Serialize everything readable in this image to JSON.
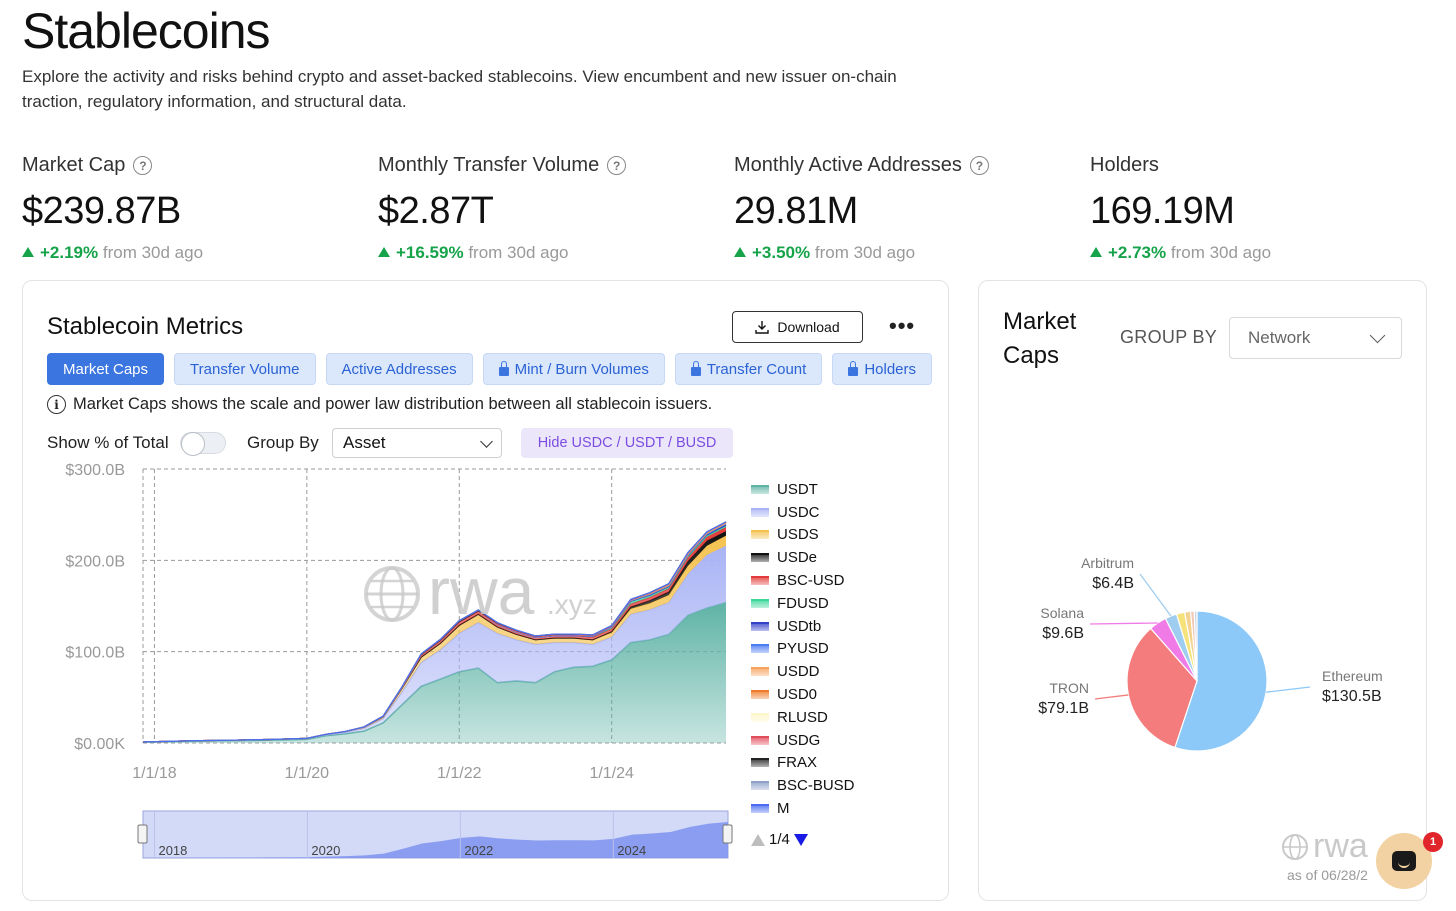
{
  "page": {
    "title": "Stablecoins",
    "description": "Explore the activity and risks behind crypto and asset-backed stablecoins. View encumbent and new issuer on-chain traction, regulatory information, and structural data."
  },
  "stats": [
    {
      "label": "Market Cap",
      "help": true,
      "value": "$239.87B",
      "change": "+2.19%",
      "suffix": "from 30d ago"
    },
    {
      "label": "Monthly Transfer Volume",
      "help": true,
      "value": "$2.87T",
      "change": "+16.59%",
      "suffix": "from 30d ago"
    },
    {
      "label": "Monthly Active Addresses",
      "help": true,
      "value": "29.81M",
      "change": "+3.50%",
      "suffix": "from 30d ago"
    },
    {
      "label": "Holders",
      "help": false,
      "value": "169.19M",
      "change": "+2.73%",
      "suffix": "from 30d ago"
    }
  ],
  "metrics_card": {
    "title": "Stablecoin Metrics",
    "download_label": "Download",
    "more_label": "•••",
    "tabs": [
      {
        "label": "Market Caps",
        "active": true,
        "locked": false
      },
      {
        "label": "Transfer Volume",
        "active": false,
        "locked": false
      },
      {
        "label": "Active Addresses",
        "active": false,
        "locked": false
      },
      {
        "label": "Mint / Burn Volumes",
        "active": false,
        "locked": true
      },
      {
        "label": "Transfer Count",
        "active": false,
        "locked": true
      },
      {
        "label": "Holders",
        "active": false,
        "locked": true
      }
    ],
    "info_text": "Market Caps shows the scale and power law distribution between all stablecoin issuers.",
    "show_pct_label": "Show % of Total",
    "show_pct_on": false,
    "group_by_label": "Group By",
    "group_by_value": "Asset",
    "hide_button": "Hide USDC / USDT / BUSD",
    "watermark": "rwa",
    "watermark_suffix": ".xyz",
    "legend_pager": "1/4",
    "navigator_ticks": [
      "2018",
      "2020",
      "2022",
      "2024"
    ]
  },
  "chart_data": {
    "type": "area",
    "stacked": true,
    "ylim": [
      0,
      300
    ],
    "y_ticks": [
      {
        "value": 0,
        "label": "$0.00K"
      },
      {
        "value": 100,
        "label": "$100.0B"
      },
      {
        "value": 200,
        "label": "$200.0B"
      },
      {
        "value": 300,
        "label": "$300.0B"
      }
    ],
    "x_ticks": [
      {
        "value": 2018.0,
        "label": "1/1/18"
      },
      {
        "value": 2020.0,
        "label": "1/1/20"
      },
      {
        "value": 2022.0,
        "label": "1/1/22"
      },
      {
        "value": 2024.0,
        "label": "1/1/24"
      }
    ],
    "xlim": [
      2017.85,
      2025.5
    ],
    "x": [
      2017.85,
      2018.5,
      2019.0,
      2019.5,
      2020.0,
      2020.25,
      2020.5,
      2020.75,
      2021.0,
      2021.25,
      2021.5,
      2021.75,
      2022.0,
      2022.25,
      2022.5,
      2022.75,
      2023.0,
      2023.25,
      2023.5,
      2023.75,
      2024.0,
      2024.25,
      2024.5,
      2024.75,
      2025.0,
      2025.25,
      2025.5
    ],
    "series": [
      {
        "name": "USDT",
        "color": "#5fb3a6",
        "values": [
          1,
          2,
          2.5,
          3,
          4,
          8,
          10,
          13,
          22,
          42,
          62,
          70,
          78,
          82,
          66,
          68,
          66,
          78,
          83,
          84,
          91,
          110,
          113,
          119,
          140,
          148,
          154
        ]
      },
      {
        "name": "USDC",
        "color": "#aab4f5",
        "values": [
          0,
          0.3,
          0.4,
          0.6,
          0.8,
          1,
          1.5,
          2.8,
          4.5,
          14,
          26,
          32,
          42,
          50,
          54,
          45,
          42,
          32,
          27,
          24,
          25,
          31,
          33,
          35,
          45,
          58,
          62
        ]
      },
      {
        "name": "USDS",
        "color": "#f4c24f",
        "values": [
          0.1,
          0.2,
          0.2,
          0.2,
          0.3,
          0.5,
          1,
          1.5,
          2,
          4,
          6,
          7,
          9,
          9,
          7,
          6,
          5,
          5,
          5,
          5,
          5,
          6,
          7,
          8,
          9,
          10,
          11
        ]
      },
      {
        "name": "USDe",
        "color": "#111111",
        "values": [
          0,
          0,
          0,
          0,
          0,
          0,
          0,
          0,
          0,
          0,
          0,
          0,
          0,
          0,
          0,
          0,
          0,
          0,
          0,
          0,
          1,
          2,
          3,
          3.5,
          5,
          5.5,
          5
        ]
      },
      {
        "name": "BSC-USD",
        "color": "#e33b3b",
        "values": [
          0,
          0,
          0,
          0,
          0,
          0,
          0,
          0.3,
          0.6,
          1,
          2,
          2.5,
          3,
          3,
          2.8,
          2.6,
          2.5,
          2.6,
          2.7,
          2.8,
          3,
          3.2,
          3.4,
          3.6,
          4,
          4.2,
          4.4
        ]
      },
      {
        "name": "FDUSD",
        "color": "#3ad69a",
        "values": [
          0,
          0,
          0,
          0,
          0,
          0,
          0,
          0,
          0,
          0,
          0,
          0,
          0,
          0,
          0,
          0,
          0,
          0,
          0,
          1,
          2,
          3,
          2.5,
          2.4,
          1.8,
          1.5,
          1.3
        ]
      },
      {
        "name": "USDtb",
        "color": "#3341c9",
        "values": [
          0,
          0,
          0,
          0,
          0,
          0,
          0,
          0,
          0,
          0,
          0,
          0,
          0,
          0,
          0,
          0,
          0,
          0,
          0,
          0,
          0,
          0,
          0,
          0,
          0.5,
          1.2,
          1.4
        ]
      },
      {
        "name": "PYUSD",
        "color": "#4d7cf0",
        "values": [
          0,
          0,
          0,
          0,
          0,
          0,
          0,
          0,
          0,
          0,
          0,
          0,
          0,
          0,
          0,
          0,
          0,
          0,
          0.1,
          0.2,
          0.3,
          0.4,
          0.7,
          0.6,
          0.5,
          0.6,
          0.9
        ]
      },
      {
        "name": "USDD",
        "color": "#f7a25c",
        "values": [
          0,
          0,
          0,
          0,
          0,
          0,
          0,
          0,
          0,
          0,
          0,
          0,
          0,
          0,
          0.6,
          0.7,
          0.7,
          0.7,
          0.7,
          0.7,
          0.7,
          0.7,
          0.7,
          0.7,
          0.7,
          0.7,
          0.7
        ]
      },
      {
        "name": "USD0",
        "color": "#ef7a2a",
        "values": [
          0,
          0,
          0,
          0,
          0,
          0,
          0,
          0,
          0,
          0,
          0,
          0,
          0,
          0,
          0,
          0,
          0,
          0,
          0,
          0,
          0,
          0.3,
          0.8,
          1.2,
          1.4,
          0.9,
          0.6
        ]
      },
      {
        "name": "RLUSD",
        "color": "#fdf6c9",
        "values": [
          0,
          0,
          0,
          0,
          0,
          0,
          0,
          0,
          0,
          0,
          0,
          0,
          0,
          0,
          0,
          0,
          0,
          0,
          0,
          0,
          0,
          0,
          0,
          0,
          0.1,
          0.2,
          0.3
        ]
      },
      {
        "name": "USDG",
        "color": "#e24d5c",
        "values": [
          0,
          0,
          0,
          0,
          0,
          0,
          0,
          0,
          0,
          0,
          0,
          0,
          0,
          0,
          0,
          0,
          0,
          0,
          0,
          0,
          0,
          0,
          0,
          0,
          0,
          0.1,
          0.2
        ]
      },
      {
        "name": "FRAX",
        "color": "#222222",
        "values": [
          0,
          0,
          0,
          0,
          0,
          0,
          0,
          0,
          0.3,
          0.8,
          1.5,
          1.8,
          2,
          1.7,
          1.4,
          1.2,
          1,
          1,
          0.8,
          0.7,
          0.6,
          0.6,
          0.5,
          0.5,
          0.4,
          0.3,
          0.3
        ]
      },
      {
        "name": "BSC-BUSD",
        "color": "#8fa1c8",
        "values": [
          0,
          0,
          0,
          0,
          0,
          0,
          0,
          0,
          0,
          0,
          0,
          0,
          0,
          0,
          0,
          0,
          0,
          0,
          0,
          0,
          0,
          0,
          0,
          0,
          0,
          0,
          0
        ]
      },
      {
        "name": "M",
        "color": "#4b6ef0",
        "values": [
          0,
          0,
          0,
          0,
          0,
          0,
          0,
          0,
          0,
          0,
          0,
          0,
          0,
          0,
          0,
          0,
          0,
          0,
          0,
          0,
          0,
          0,
          0,
          0,
          0,
          0.05,
          0.1
        ]
      }
    ],
    "grid": true,
    "legend_position": "right"
  },
  "pie_card": {
    "title": "Market Caps",
    "group_by_label": "GROUP BY",
    "group_by_value": "Network",
    "watermark": "rwa",
    "as_of": "as of 06/28/2"
  },
  "pie_chart_data": {
    "type": "pie",
    "slices": [
      {
        "name": "Ethereum",
        "value": 130.5,
        "label": "$130.5B",
        "color": "#8cc8f8"
      },
      {
        "name": "TRON",
        "value": 79.1,
        "label": "$79.1B",
        "color": "#f47c7c"
      },
      {
        "name": "Solana",
        "value": 9.6,
        "label": "$9.6B",
        "color": "#f07ae6"
      },
      {
        "name": "Arbitrum",
        "value": 6.4,
        "label": "$6.4B",
        "color": "#9fcdf0"
      },
      {
        "name": "",
        "value": 4.5,
        "label": "",
        "color": "#f6e27a"
      },
      {
        "name": "",
        "value": 3.2,
        "label": "",
        "color": "#f3d18f"
      },
      {
        "name": "",
        "value": 2.0,
        "label": "",
        "color": "#f2c8b5"
      },
      {
        "name": "",
        "value": 1.5,
        "label": "",
        "color": "#cfd6e4"
      }
    ]
  },
  "chat": {
    "badge": "1"
  }
}
